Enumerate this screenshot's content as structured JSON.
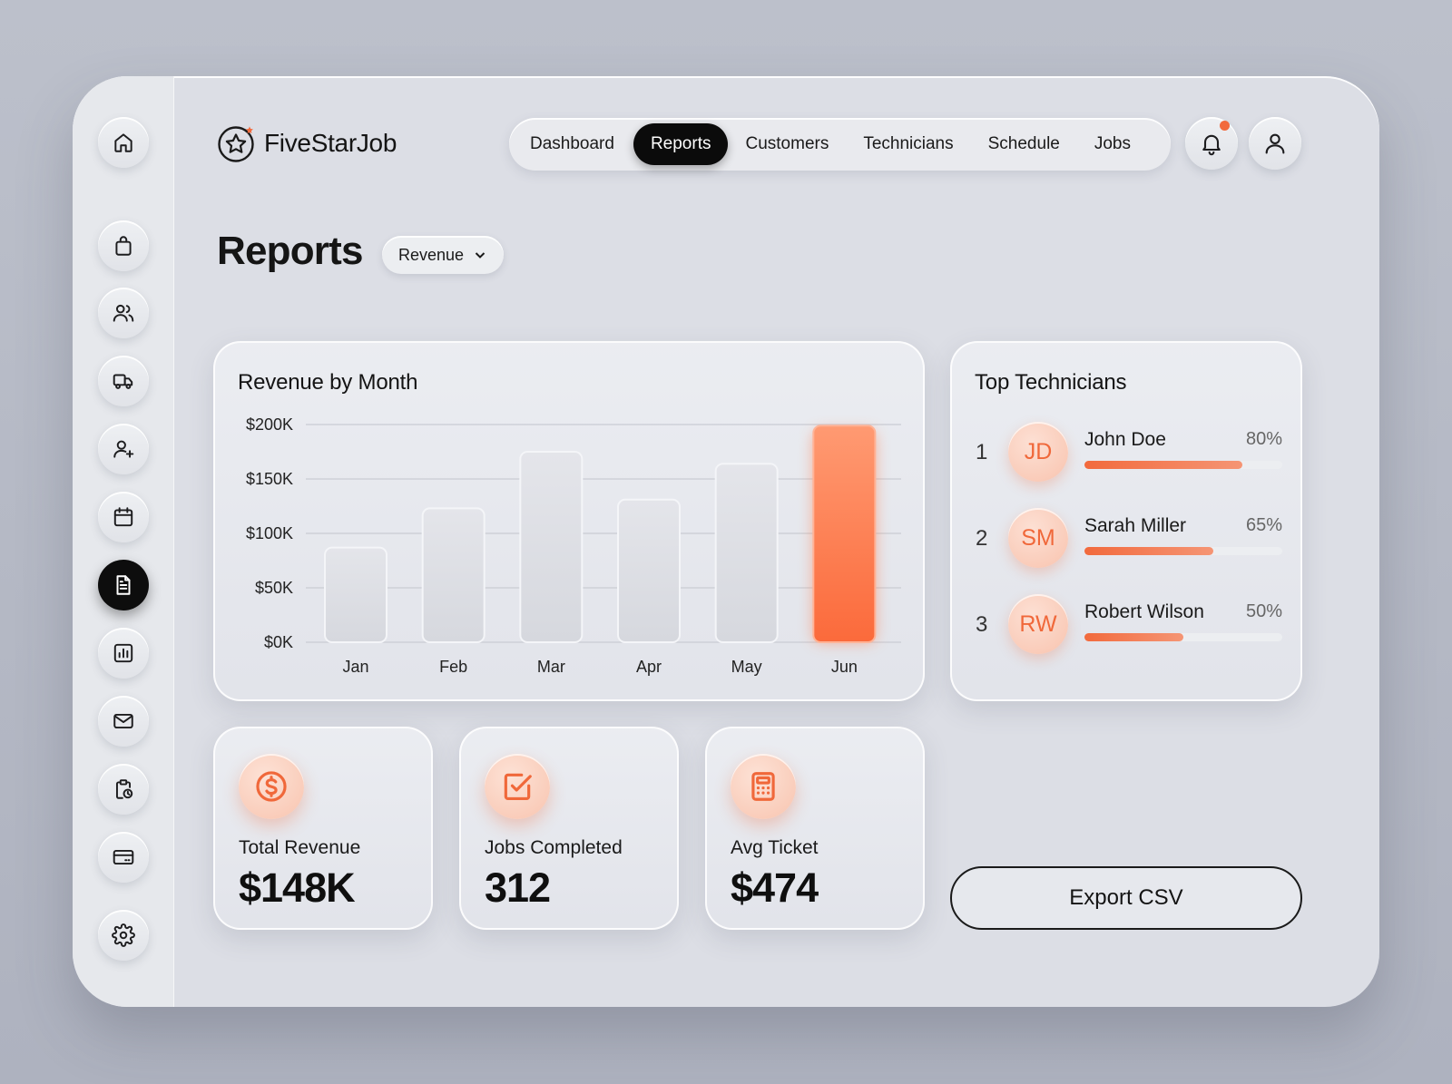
{
  "brand": {
    "name": "FiveStarJob"
  },
  "nav": {
    "items": [
      {
        "label": "Dashboard",
        "active": false
      },
      {
        "label": "Reports",
        "active": true
      },
      {
        "label": "Customers",
        "active": false
      },
      {
        "label": "Technicians",
        "active": false
      },
      {
        "label": "Schedule",
        "active": false
      },
      {
        "label": "Jobs",
        "active": false
      }
    ]
  },
  "sidebar": {
    "icons": [
      "home-icon",
      "bag-icon",
      "users-icon",
      "truck-icon",
      "user-plus-icon",
      "calendar-icon",
      "document-icon",
      "bar-chart-icon",
      "mail-icon",
      "clipboard-clock-icon",
      "credit-card-icon",
      "gear-icon"
    ],
    "active": "document-icon"
  },
  "page": {
    "title": "Reports",
    "filter": {
      "selected": "Revenue"
    }
  },
  "colors": {
    "accent": "#f26a3d",
    "dark": "#0d0d0d",
    "surface": "#dcdee5"
  },
  "revenue_chart": {
    "title": "Revenue by Month"
  },
  "chart_data": {
    "type": "bar",
    "title": "Revenue by Month",
    "categories": [
      "Jan",
      "Feb",
      "Mar",
      "Apr",
      "May",
      "Jun"
    ],
    "values": [
      87,
      123,
      175,
      131,
      164,
      199
    ],
    "unit": "$K",
    "ylim": [
      0,
      200
    ],
    "yticks": [
      0,
      50,
      100,
      150,
      200
    ],
    "ytick_labels": [
      "$0K",
      "$50K",
      "$100K",
      "$150K",
      "$200K"
    ],
    "highlight": "Jun",
    "grid": true
  },
  "top_technicians": {
    "title": "Top Technicians",
    "items": [
      {
        "rank": "1",
        "initials": "JD",
        "name": "John Doe",
        "pct_label": "80%",
        "value": 0.8
      },
      {
        "rank": "2",
        "initials": "SM",
        "name": "Sarah Miller",
        "pct_label": "65%",
        "value": 0.65
      },
      {
        "rank": "3",
        "initials": "RW",
        "name": "Robert Wilson",
        "pct_label": "50%",
        "value": 0.5
      }
    ]
  },
  "stats": [
    {
      "icon": "dollar-icon",
      "label": "Total Revenue",
      "value": "$148K"
    },
    {
      "icon": "check-square-icon",
      "label": "Jobs Completed",
      "value": "312"
    },
    {
      "icon": "calculator-icon",
      "label": "Avg Ticket",
      "value": "$474"
    }
  ],
  "actions": {
    "export_label": "Export CSV"
  }
}
